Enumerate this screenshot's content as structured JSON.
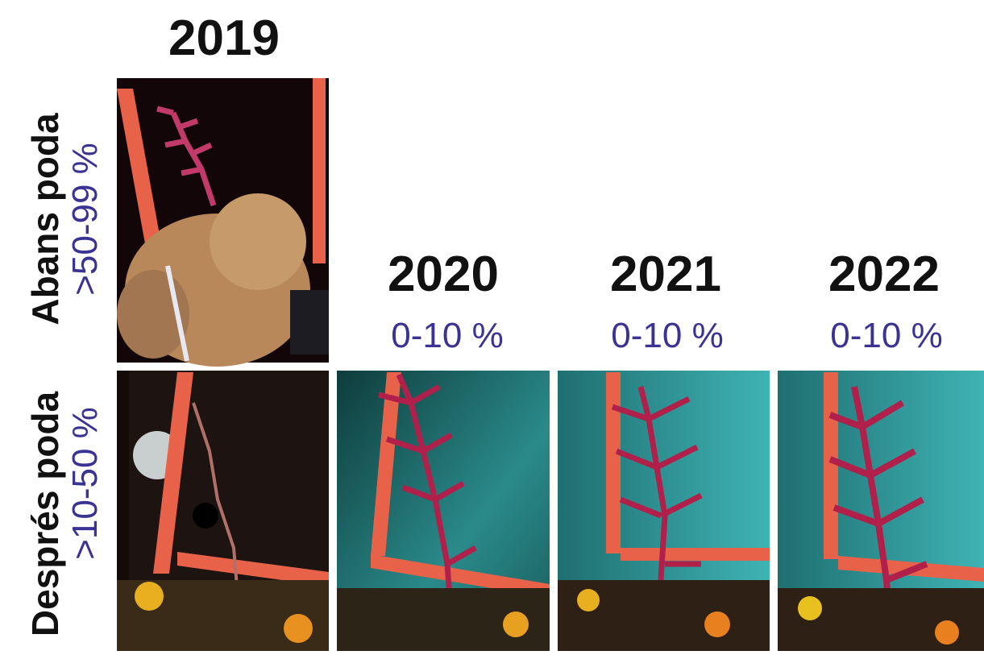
{
  "columns": [
    {
      "year": "2019"
    },
    {
      "year": "2020",
      "cover": "0-10 %"
    },
    {
      "year": "2021",
      "cover": "0-10 %"
    },
    {
      "year": "2022",
      "cover": "0-10 %"
    }
  ],
  "rows": [
    {
      "label": "Abans poda",
      "cover": ">50-99 %"
    },
    {
      "label": "Després poda",
      "cover": ">10-50 %"
    }
  ]
}
